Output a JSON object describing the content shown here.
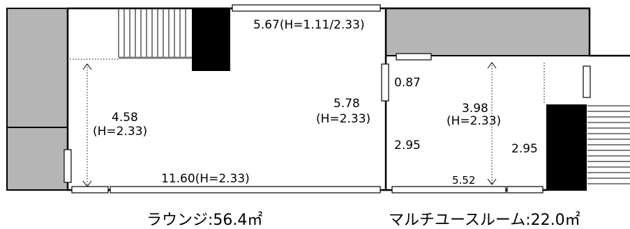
{
  "dimensions": {
    "top_window": "5.67(H=1.11/2.33)",
    "right_window_small": "0.87",
    "lounge_depth": "4.58",
    "lounge_depth_height": "(H=2.33)",
    "lounge_right_wall": "5.78",
    "lounge_right_wall_height": "(H=2.33)",
    "multi_depth": "3.98",
    "multi_depth_height": "(H=2.33)",
    "multi_left_wall": "2.95",
    "multi_right_wall": "2.95",
    "lounge_bottom_window": "11.60(H=2.33)",
    "multi_bottom_window": "5.52"
  },
  "rooms": [
    "ラウンジ:56.4㎡",
    "マルチユースルーム:22.0㎡"
  ]
}
